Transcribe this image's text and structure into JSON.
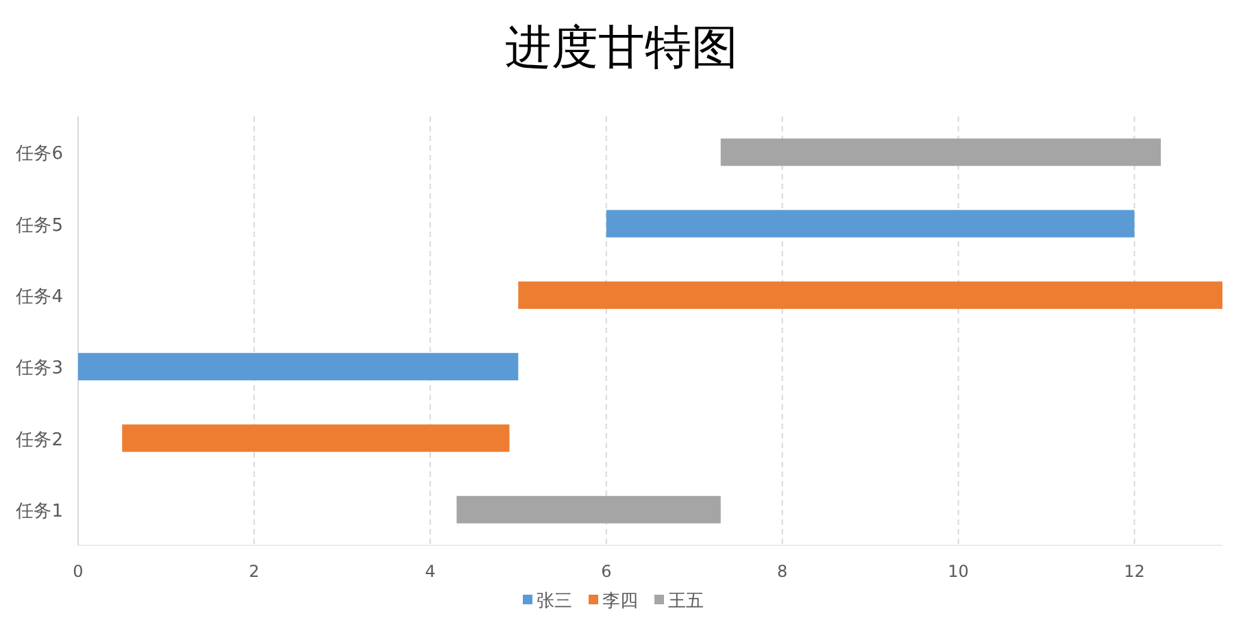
{
  "chart_data": {
    "type": "bar",
    "orientation": "horizontal",
    "title": "进度甘特图",
    "categories": [
      "任务6",
      "任务5",
      "任务4",
      "任务3",
      "任务2",
      "任务1"
    ],
    "series": [
      {
        "name": "张三",
        "color": "#5b9bd5",
        "base": [
          null,
          6,
          null,
          0,
          null,
          null
        ],
        "values": [
          null,
          6,
          null,
          5,
          null,
          null
        ]
      },
      {
        "name": "李四",
        "color": "#ed7d31",
        "base": [
          null,
          null,
          5,
          null,
          0.5,
          null
        ],
        "values": [
          null,
          null,
          8,
          null,
          4.4,
          null
        ]
      },
      {
        "name": "王五",
        "color": "#a5a5a5",
        "base": [
          7.3,
          null,
          null,
          null,
          null,
          4.3
        ],
        "values": [
          5,
          null,
          null,
          null,
          null,
          3
        ]
      }
    ],
    "xlim": [
      0,
      13
    ],
    "xticks": [
      0,
      2,
      4,
      6,
      8,
      10,
      12
    ],
    "grid": "x",
    "legend": "bottom"
  }
}
